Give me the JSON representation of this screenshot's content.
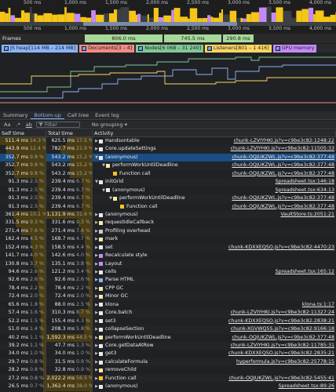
{
  "overview": {
    "ruler_top": [
      "500 ms",
      "1,000 ms",
      "1,500 ms",
      "2,000 ms",
      "2,500 ms",
      "3,000 ms",
      "3,500 ms",
      "4,000 ms"
    ],
    "ruler_mid": [
      "500 ms",
      "1,000 ms",
      "1,500 ms",
      "2,000 ms",
      "2,500 ms",
      "3,000 ms",
      "3,500 ms",
      "4,000 ms"
    ]
  },
  "frames": {
    "label": "Frames",
    "segments": [
      "806.0 ms",
      "745.5 ms",
      "290.8 ms"
    ]
  },
  "counters": [
    {
      "label": "JS heap[114 MB – 214 MB]",
      "color": "#8ab4f8"
    },
    {
      "label": "Documents[3 – 4]",
      "color": "#f28b82"
    },
    {
      "label": "Nodes[6 068 – 31 240]",
      "color": "#81c995"
    },
    {
      "label": "Listeners[801 – 1 416]",
      "color": "#fdd663"
    },
    {
      "label": "GPU memory",
      "color": "#c58af9"
    }
  ],
  "tabs": [
    "Summary",
    "Bottom-up",
    "Call tree",
    "Event log"
  ],
  "filter": {
    "aa": "Aa",
    "regex": ".*",
    "match": "ab",
    "placeholder": "Filter",
    "grouping": "No grouping"
  },
  "table": {
    "headers": {
      "self": "Self time",
      "total": "Total time",
      "activity": "Activity"
    },
    "rows": [
      {
        "self": "511.4 ms",
        "selfp": "14.3 %",
        "total": "625.5 ms",
        "totalp": "17.5 %",
        "depth": 0,
        "arrow": "▶",
        "color": "#e8eaed",
        "name": "Handsontable",
        "url": "chunk-LZVIYHKI.js?v=c9be3c82:1248:22",
        "sf": 1.0,
        "tf": 0.55
      },
      {
        "self": "443.9 ms",
        "selfp": "12.4 %",
        "total": "782.7 ms",
        "totalp": "21.9 %",
        "depth": 0,
        "arrow": "▶",
        "color": "#e8eaed",
        "name": "Core.updateSettings",
        "url": "chunk-LZVIYHKI.js?v=c9be3c82:11505:33",
        "sf": 0.87,
        "tf": 0.69
      },
      {
        "self": "352.7 ms",
        "selfp": "9.8 %",
        "total": "543.2 ms",
        "totalp": "15.2 %",
        "depth": 0,
        "arrow": "▼",
        "color": "#e8eaed",
        "name": "(anonymous)",
        "url": "chunk-OQJUKZWL.js?v=c9be3c82:377:48",
        "sf": 0.69,
        "tf": 0.48,
        "selected": true
      },
      {
        "self": "352.7 ms",
        "selfp": "9.8 %",
        "total": "543.2 ms",
        "totalp": "15.2 %",
        "depth": 1,
        "arrow": "▼",
        "color": "#f9e9a6",
        "name": "performWorkUntilDeadline",
        "url": "chunk-OQJUKZWL.js?v=c9be3c82:377:48",
        "sf": 0.69,
        "tf": 0.48
      },
      {
        "self": "352.7 ms",
        "selfp": "9.8 %",
        "total": "543.2 ms",
        "totalp": "15.2 %",
        "depth": 2,
        "arrow": "",
        "color": "#f5c518",
        "name": "Function call",
        "url": "chunk-OQJUKZWL.js?v=c9be3c82:377:48",
        "sf": 0.69,
        "tf": 0.48
      },
      {
        "self": "91.3 ms",
        "selfp": "2.5 %",
        "total": "239.4 ms",
        "totalp": "6.7 %",
        "depth": 0,
        "arrow": "▼",
        "color": "#e8eaed",
        "name": "initGrid",
        "url": "Spreadsheet.tsx:146:18",
        "sf": 0.18,
        "tf": 0.21
      },
      {
        "self": "91.3 ms",
        "selfp": "2.5 %",
        "total": "239.4 ms",
        "totalp": "6.7 %",
        "depth": 1,
        "arrow": "▼",
        "color": "#e8eaed",
        "name": "(anonymous)",
        "url": "Spreadsheet.tsx:634:13",
        "sf": 0.18,
        "tf": 0.21
      },
      {
        "self": "91.3 ms",
        "selfp": "2.5 %",
        "total": "239.4 ms",
        "totalp": "6.7 %",
        "depth": 2,
        "arrow": "▼",
        "color": "#f9e9a6",
        "name": "performWorkUntilDeadline",
        "url": "chunk-OQJUKZWL.js?v=c9be3c82:377:48",
        "sf": 0.18,
        "tf": 0.21
      },
      {
        "self": "91.3 ms",
        "selfp": "2.5 %",
        "total": "239.4 ms",
        "totalp": "6.7 %",
        "depth": 3,
        "arrow": "",
        "color": "#f5c518",
        "name": "Function call",
        "url": "chunk-OQJUKZWL.js?v=c9be3c82:377:48",
        "sf": 0.18,
        "tf": 0.21
      },
      {
        "self": "361.4 ms",
        "selfp": "10.1 %",
        "total": "1,131.9 ms",
        "totalp": "31.6 %",
        "depth": 0,
        "arrow": "▶",
        "color": "#e8eaed",
        "name": "(anonymous)",
        "url": "VaultStore.ts:2051:21",
        "sf": 0.71,
        "tf": 1.0
      },
      {
        "self": "331.5 ms",
        "selfp": "9.3 %",
        "total": "331.6 ms",
        "totalp": "9.3 %",
        "depth": 0,
        "arrow": "▶",
        "color": "#f9e9a6",
        "name": "requestIdleCallback",
        "url": "",
        "sf": 0.65,
        "tf": 0.29
      },
      {
        "self": "271.4 ms",
        "selfp": "7.6 %",
        "total": "271.4 ms",
        "totalp": "7.6 %",
        "depth": 0,
        "arrow": "▶",
        "color": "#c9cbcf",
        "name": "Profiling overhead",
        "url": "",
        "sf": 0.53,
        "tf": 0.24
      },
      {
        "self": "162.4 ms",
        "selfp": "4.5 %",
        "total": "168.7 ms",
        "totalp": "4.7 %",
        "depth": 0,
        "arrow": "▶",
        "color": "#f9e9a6",
        "name": "mark",
        "url": "",
        "sf": 0.32,
        "tf": 0.15
      },
      {
        "self": "152.4 ms",
        "selfp": "4.3 %",
        "total": "158.5 ms",
        "totalp": "4.4 %",
        "depth": 0,
        "arrow": "▶",
        "color": "#e8eaed",
        "name": "set",
        "url": "chunk-KDXXEQSO.js?v=c9be3c82:4470:23",
        "sf": 0.3,
        "tf": 0.14
      },
      {
        "self": "141.7 ms",
        "selfp": "4.0 %",
        "total": "142.6 ms",
        "totalp": "4.0 %",
        "depth": 0,
        "arrow": "▶",
        "color": "#c58af9",
        "name": "Recalculate style",
        "url": "",
        "sf": 0.28,
        "tf": 0.13
      },
      {
        "self": "130.8 ms",
        "selfp": "3.7 %",
        "total": "135.1 ms",
        "totalp": "3.8 %",
        "depth": 0,
        "arrow": "▶",
        "color": "#c58af9",
        "name": "Layout",
        "url": "",
        "sf": 0.26,
        "tf": 0.12
      },
      {
        "self": "94.6 ms",
        "selfp": "2.6 %",
        "total": "121.2 ms",
        "totalp": "3.4 %",
        "depth": 0,
        "arrow": "▶",
        "color": "#e8eaed",
        "name": "cells",
        "url": "Spreadsheet.tsx:165:12",
        "sf": 0.18,
        "tf": 0.11
      },
      {
        "self": "92.6 ms",
        "selfp": "2.6 %",
        "total": "92.6 ms",
        "totalp": "2.6 %",
        "depth": 0,
        "arrow": "▶",
        "color": "#8ab4f8",
        "name": "Parse HTML",
        "url": "",
        "sf": 0.18,
        "tf": 0.08
      },
      {
        "self": "78.4 ms",
        "selfp": "2.2 %",
        "total": "78.4 ms",
        "totalp": "2.2 %",
        "depth": 0,
        "arrow": "▶",
        "color": "#f9e9a6",
        "name": "CPP GC",
        "url": "",
        "sf": 0.15,
        "tf": 0.07
      },
      {
        "self": "72.4 ms",
        "selfp": "2.0 %",
        "total": "72.4 ms",
        "totalp": "2.0 %",
        "depth": 0,
        "arrow": "▶",
        "color": "#f9e9a6",
        "name": "Minor GC",
        "url": "",
        "sf": 0.14,
        "tf": 0.06
      },
      {
        "self": "65.6 ms",
        "selfp": "1.8 %",
        "total": "88.0 ms",
        "totalp": "2.5 %",
        "depth": 0,
        "arrow": "▶",
        "color": "#e8eaed",
        "name": "klona",
        "url": "klona.ts:1:17",
        "sf": 0.13,
        "tf": 0.08
      },
      {
        "self": "57.4 ms",
        "selfp": "1.6 %",
        "total": "310.3 ms",
        "totalp": "8.7 %",
        "depth": 0,
        "arrow": "▶",
        "color": "#e8eaed",
        "name": "Core.batch",
        "url": "chunk-LZVIYHKI.js?v=c9be3c82:11327:24",
        "sf": 0.11,
        "tf": 0.27
      },
      {
        "self": "52.2 ms",
        "selfp": "1.5 %",
        "total": "155.4 ms",
        "totalp": "4.3 %",
        "depth": 0,
        "arrow": "▶",
        "color": "#e8eaed",
        "name": "set3",
        "url": "chunk-KDXXEQSO.js?v=c9be3c82:2838:21",
        "sf": 0.1,
        "tf": 0.14
      },
      {
        "self": "51.0 ms",
        "selfp": "1.4 %",
        "total": "208.3 ms",
        "totalp": "5.8 %",
        "depth": 0,
        "arrow": "▶",
        "color": "#e8eaed",
        "name": "collapseSection",
        "url": "chunk-XGVWQ5S.js?v=c9be3c82:9166:18",
        "sf": 0.1,
        "tf": 0.18
      },
      {
        "self": "40.2 ms",
        "selfp": "1.1 %",
        "total": "1,592.3 ms",
        "totalp": "44.5 %",
        "depth": 0,
        "arrow": "▶",
        "color": "#f9e9a6",
        "name": "performWorkUntilDeadline",
        "url": "chunk-OQJUKZWL.js?v=c9be3c82:377:48",
        "sf": 0.08,
        "tf": 1.0
      },
      {
        "self": "39.2 ms",
        "selfp": "1.1 %",
        "total": "47.7 ms",
        "totalp": "1.3 %",
        "depth": 0,
        "arrow": "▶",
        "color": "#e8eaed",
        "name": "Core.getDataAtRow",
        "url": "chunk-LZVIYHKI.js?v=c9be3c82:11785:31",
        "sf": 0.08,
        "tf": 0.04
      },
      {
        "self": "34.0 ms",
        "selfp": "1.0 %",
        "total": "34.0 ms",
        "totalp": "1.0 %",
        "depth": 0,
        "arrow": "▶",
        "color": "#e8eaed",
        "name": "get3",
        "url": "chunk-KDXXEQSO.js?v=c9be3c82:2835:21",
        "sf": 0.07,
        "tf": 0.03
      },
      {
        "self": "29.7 ms",
        "selfp": "0.8 %",
        "total": "31.5 ms",
        "totalp": "0.9 %",
        "depth": 0,
        "arrow": "▶",
        "color": "#e8eaed",
        "name": "calculateFormula",
        "url": "hyperformula.js?v=c9be3c82:25778:15",
        "sf": 0.06,
        "tf": 0.03
      },
      {
        "self": "28.2 ms",
        "selfp": "0.8 %",
        "total": "32.8 ms",
        "totalp": "0.9 %",
        "depth": 0,
        "arrow": "▶",
        "color": "#f9e9a6",
        "name": "removeChild",
        "url": "",
        "sf": 0.06,
        "tf": 0.03
      },
      {
        "self": "27.2 ms",
        "selfp": "0.8 %",
        "total": "2,022.2 ms",
        "totalp": "56.5 %",
        "depth": 0,
        "arrow": "▶",
        "color": "#f5c518",
        "name": "Function call",
        "url": "chunk-OQJUKZWL.js?v=c9be3c82:5455:41",
        "sf": 0.05,
        "tf": 1.0
      },
      {
        "self": "26.5 ms",
        "selfp": "0.7 %",
        "total": "1,362.4 ms",
        "totalp": "38.0 %",
        "depth": 0,
        "arrow": "▶",
        "color": "#e8eaed",
        "name": "(anonymous)",
        "url": "Spreadsheet.tsx:89:26",
        "sf": 0.05,
        "tf": 1.0
      },
      {
        "self": "23.3 ms",
        "selfp": "0.7 %",
        "total": "72.3 ms",
        "totalp": "2.0 %",
        "depth": 0,
        "arrow": "▶",
        "color": "#f9e9a6",
        "name": "set innerHTML",
        "url": "",
        "sf": 0.05,
        "tf": 0.06
      }
    ]
  }
}
